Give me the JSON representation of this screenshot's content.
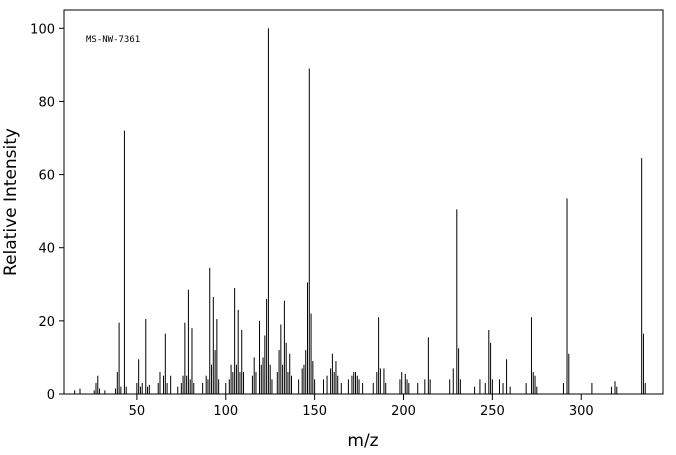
{
  "chart_data": {
    "type": "stem",
    "annotation": "MS-NW-7361",
    "xlabel": "m/z",
    "ylabel": "Relative Intensity",
    "color": "#000000",
    "xlim": [
      9,
      346
    ],
    "ylim": [
      0,
      105
    ],
    "xticks": [
      50,
      100,
      150,
      200,
      250,
      300
    ],
    "yticks": [
      0,
      20,
      40,
      60,
      80,
      100
    ],
    "x": [
      15,
      18,
      26,
      27,
      28,
      29,
      32,
      38,
      39,
      40,
      41,
      43,
      44,
      50,
      51,
      52,
      53,
      55,
      56,
      57,
      62,
      63,
      65,
      66,
      67,
      69,
      73,
      75,
      76,
      77,
      78,
      79,
      80,
      81,
      82,
      87,
      89,
      90,
      91,
      92,
      93,
      94,
      95,
      96,
      100,
      102,
      103,
      104,
      105,
      106,
      107,
      108,
      109,
      110,
      115,
      116,
      117,
      119,
      120,
      121,
      122,
      123,
      124,
      125,
      126,
      129,
      130,
      131,
      132,
      133,
      134,
      135,
      136,
      137,
      141,
      143,
      144,
      145,
      146,
      147,
      148,
      149,
      150,
      155,
      157,
      159,
      160,
      161,
      162,
      163,
      165,
      169,
      171,
      172,
      173,
      174,
      175,
      177,
      183,
      185,
      186,
      187,
      189,
      190,
      198,
      199,
      201,
      202,
      203,
      208,
      212,
      214,
      215,
      226,
      228,
      230,
      231,
      232,
      240,
      243,
      246,
      248,
      249,
      250,
      254,
      256,
      258,
      260,
      269,
      272,
      273,
      274,
      275,
      290,
      292,
      293,
      306,
      317,
      319,
      320,
      334,
      335,
      336
    ],
    "values": [
      1,
      1.5,
      1,
      3,
      5,
      1.5,
      1,
      1.5,
      6,
      19.5,
      2,
      72,
      2,
      3,
      9.5,
      2,
      3,
      20.5,
      2,
      2.5,
      3,
      6,
      5,
      16.5,
      3,
      5,
      2,
      3,
      5,
      19.5,
      5,
      28.5,
      4,
      18,
      3,
      3,
      5,
      4,
      34.5,
      8,
      26.5,
      12,
      20.5,
      4,
      3,
      4,
      8,
      6,
      29,
      8,
      23,
      6,
      17.5,
      6,
      5,
      10,
      6,
      20,
      8,
      10,
      16,
      26,
      100,
      8,
      4,
      6,
      12,
      19,
      8,
      25.5,
      14,
      6,
      11,
      5,
      4,
      7,
      8,
      12,
      30.5,
      89,
      22,
      9,
      4,
      4,
      5,
      7,
      11,
      6,
      9,
      5,
      3,
      4,
      5,
      6,
      6,
      5,
      4,
      3,
      3,
      6,
      21,
      7,
      7,
      3,
      4,
      6,
      5.5,
      4,
      3,
      3,
      4,
      15.5,
      4,
      4,
      7,
      50.5,
      12.5,
      4,
      2,
      4,
      3,
      17.5,
      14,
      4,
      4,
      3,
      9.5,
      2,
      3,
      21,
      6,
      5,
      2,
      3,
      53.5,
      11,
      3,
      2,
      3.5,
      2,
      64.5,
      16.5,
      3
    ]
  }
}
